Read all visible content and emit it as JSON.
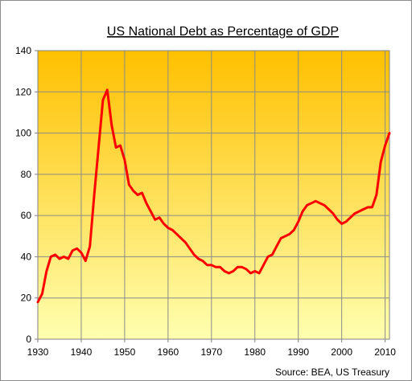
{
  "chart_data": {
    "type": "line",
    "title": "US National Debt as Percentage of GDP",
    "xlabel": "",
    "ylabel": "",
    "source": "Source:  BEA, US Treasury",
    "xlim": [
      1930,
      2011
    ],
    "ylim": [
      0,
      140
    ],
    "x_ticks": [
      "1930",
      "1940",
      "1950",
      "1960",
      "1970",
      "1980",
      "1990",
      "2000",
      "2010"
    ],
    "y_ticks": [
      "0",
      "20",
      "40",
      "60",
      "80",
      "100",
      "120",
      "140"
    ],
    "grid": true,
    "line_color": "#ff0000",
    "background_gradient": [
      "#ffc000",
      "#ffffb0"
    ],
    "series": [
      {
        "x": [
          1930,
          1931,
          1932,
          1933,
          1934,
          1935,
          1936,
          1937,
          1938,
          1939,
          1940,
          1941,
          1942,
          1943,
          1944,
          1945,
          1946,
          1947,
          1948,
          1949,
          1950,
          1951,
          1952,
          1953,
          1954,
          1955,
          1956,
          1957,
          1958,
          1959,
          1960,
          1961,
          1962,
          1963,
          1964,
          1965,
          1966,
          1967,
          1968,
          1969,
          1970,
          1971,
          1972,
          1973,
          1974,
          1975,
          1976,
          1977,
          1978,
          1979,
          1980,
          1981,
          1982,
          1983,
          1984,
          1985,
          1986,
          1987,
          1988,
          1989,
          1990,
          1991,
          1992,
          1993,
          1994,
          1995,
          1996,
          1997,
          1998,
          1999,
          2000,
          2001,
          2002,
          2003,
          2004,
          2005,
          2006,
          2007,
          2008,
          2009,
          2010,
          2011
        ],
        "values": [
          18,
          22,
          33,
          40,
          41,
          39,
          40,
          39,
          43,
          44,
          42,
          38,
          45,
          70,
          93,
          116,
          121,
          104,
          93,
          94,
          87,
          75,
          72,
          70,
          71,
          66,
          62,
          58,
          59,
          56,
          54,
          53,
          51,
          49,
          47,
          44,
          41,
          39,
          38,
          36,
          36,
          35,
          35,
          33,
          32,
          33,
          35,
          35,
          34,
          32,
          33,
          32,
          36,
          40,
          41,
          45,
          49,
          50,
          51,
          53,
          57,
          62,
          65,
          66,
          67,
          66,
          65,
          63,
          61,
          58,
          56,
          57,
          59,
          61,
          62,
          63,
          64,
          64,
          70,
          86,
          94,
          100
        ]
      }
    ]
  }
}
